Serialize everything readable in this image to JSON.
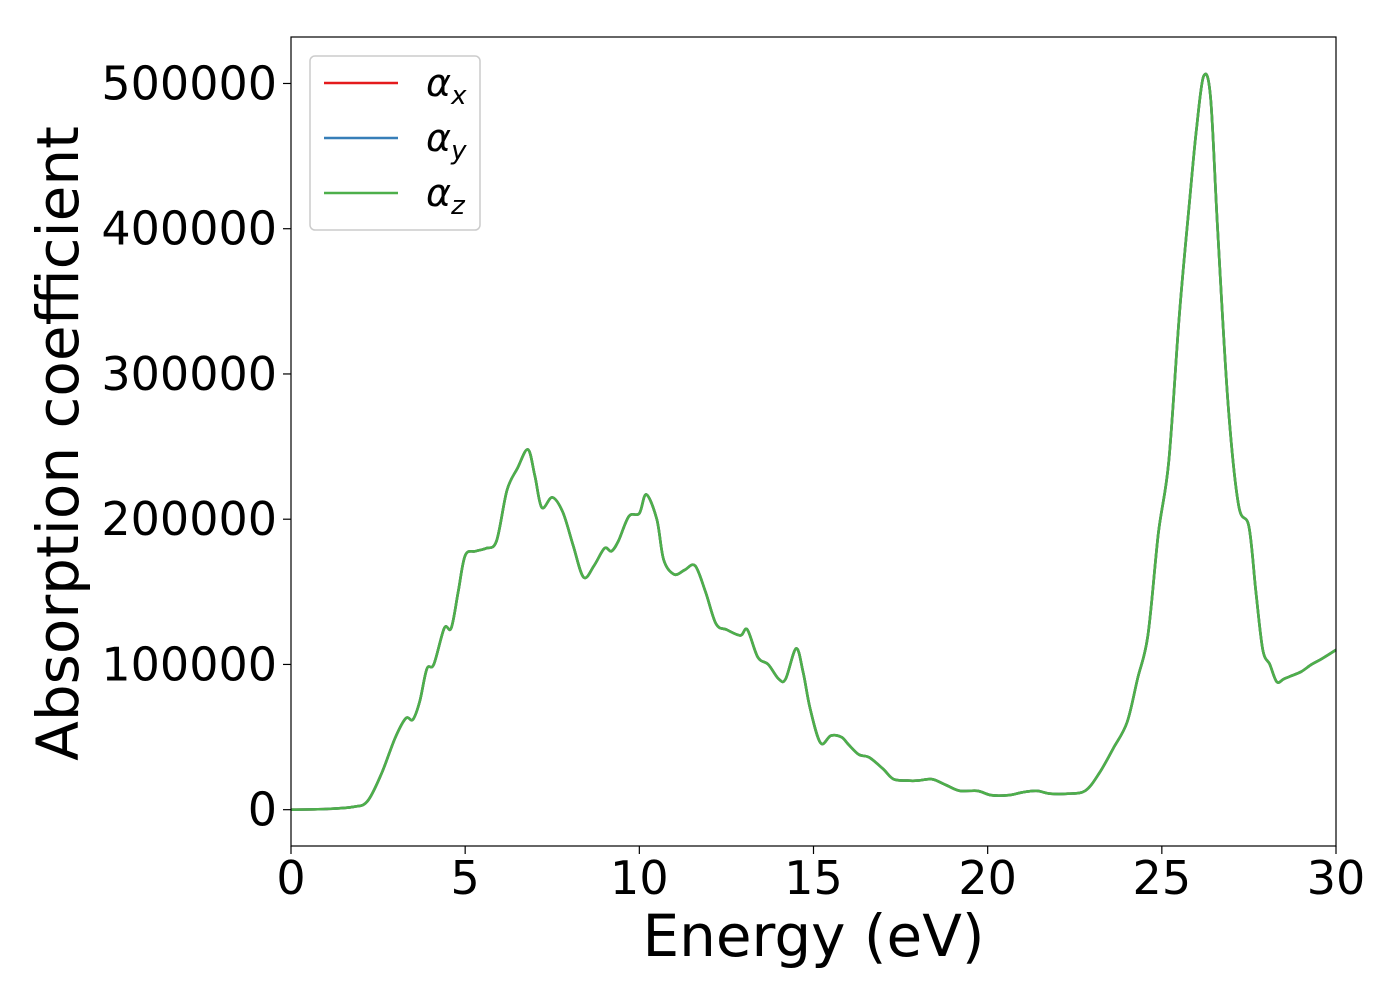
{
  "chart_data": {
    "type": "line",
    "xlabel": "Energy (eV)",
    "ylabel": "Absorption coefficient",
    "xlim": [
      0,
      30
    ],
    "ylim": [
      -25000,
      532000
    ],
    "xticks": [
      0,
      5,
      10,
      15,
      20,
      25,
      30
    ],
    "xtick_labels": [
      "0",
      "5",
      "10",
      "15",
      "20",
      "25",
      "30"
    ],
    "yticks": [
      0,
      100000,
      200000,
      300000,
      400000,
      500000
    ],
    "ytick_labels": [
      "0",
      "100000",
      "200000",
      "300000",
      "400000",
      "500000"
    ],
    "grid": false,
    "legend_position": "top-left",
    "series": [
      {
        "name": "α",
        "subscript": "x",
        "color": "#e41a1c"
      },
      {
        "name": "α",
        "subscript": "y",
        "color": "#377eb8"
      },
      {
        "name": "α",
        "subscript": "z",
        "color": "#4daf4a"
      }
    ],
    "x": [
      0,
      1.0,
      1.8,
      2.2,
      2.6,
      3.0,
      3.3,
      3.5,
      3.7,
      3.9,
      4.1,
      4.4,
      4.6,
      4.8,
      5.0,
      5.3,
      5.6,
      5.9,
      6.2,
      6.5,
      6.8,
      7.0,
      7.2,
      7.5,
      7.8,
      8.1,
      8.4,
      8.7,
      9.0,
      9.2,
      9.4,
      9.7,
      10.0,
      10.2,
      10.5,
      10.7,
      11.0,
      11.3,
      11.6,
      11.9,
      12.2,
      12.5,
      12.9,
      13.1,
      13.4,
      13.7,
      14.0,
      14.2,
      14.5,
      14.7,
      14.9,
      15.2,
      15.5,
      15.8,
      16.0,
      16.3,
      16.6,
      17.0,
      17.3,
      17.7,
      18.0,
      18.4,
      18.8,
      19.2,
      19.7,
      20.1,
      20.6,
      21.0,
      21.4,
      21.8,
      22.3,
      22.8,
      23.2,
      23.6,
      24.0,
      24.3,
      24.6,
      24.9,
      25.2,
      25.5,
      25.8,
      26.0,
      26.2,
      26.4,
      26.6,
      26.9,
      27.2,
      27.5,
      27.7,
      27.9,
      28.1,
      28.3,
      28.5,
      28.7,
      29.0,
      29.3,
      29.6,
      30.0
    ],
    "y": [
      0,
      500,
      2000,
      6000,
      25000,
      50000,
      63000,
      62000,
      75000,
      97000,
      100000,
      125000,
      125000,
      150000,
      175000,
      178000,
      180000,
      185000,
      220000,
      235000,
      248000,
      230000,
      208000,
      215000,
      205000,
      182000,
      160000,
      168000,
      180000,
      178000,
      185000,
      202000,
      204000,
      217000,
      200000,
      172000,
      162000,
      165000,
      168000,
      150000,
      128000,
      124000,
      120000,
      124000,
      105000,
      100000,
      90000,
      90000,
      111000,
      95000,
      70000,
      46000,
      51000,
      50000,
      45000,
      38000,
      36000,
      28000,
      21000,
      20000,
      20000,
      21000,
      17000,
      13000,
      13000,
      10000,
      10000,
      12000,
      13000,
      11000,
      11000,
      13000,
      25000,
      42000,
      60000,
      90000,
      120000,
      190000,
      240000,
      340000,
      420000,
      470000,
      505000,
      490000,
      400000,
      280000,
      210000,
      195000,
      150000,
      110000,
      100000,
      88000,
      90000,
      92000,
      95000,
      100000,
      104000,
      110000
    ]
  }
}
